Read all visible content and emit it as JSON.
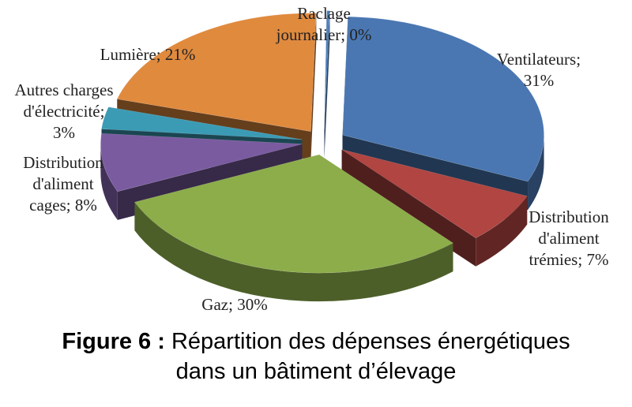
{
  "chart_data": {
    "type": "pie",
    "title": "",
    "slices": [
      {
        "label_lines": [
          "Raclage",
          "journalier; 0%"
        ],
        "category": "Raclage journalier",
        "value": 0,
        "color": "#4F81BD"
      },
      {
        "label_lines": [
          "Ventilateurs;",
          "31%"
        ],
        "category": "Ventilateurs",
        "value": 31,
        "color": "#4A77B2"
      },
      {
        "label_lines": [
          "Distribution",
          "d'aliment",
          "trémies; 7%"
        ],
        "category": "Distribution d'aliment trémies",
        "value": 7,
        "color": "#B04542"
      },
      {
        "label_lines": [
          "Gaz; 30%"
        ],
        "category": "Gaz",
        "value": 30,
        "color": "#8CAD4A"
      },
      {
        "label_lines": [
          "Distribution",
          "d'aliment",
          "cages; 8%"
        ],
        "category": "Distribution d'aliment cages",
        "value": 8,
        "color": "#7A5BA0"
      },
      {
        "label_lines": [
          "Autres charges",
          "d'électricité;",
          "3%"
        ],
        "category": "Autres charges d'électricité",
        "value": 3,
        "color": "#3C9BB4"
      },
      {
        "label_lines": [
          "Lumière; 21%"
        ],
        "category": "Lumière",
        "value": 21,
        "color": "#E08A3E"
      }
    ],
    "style": "3d-exploded-pie",
    "legend": "none"
  },
  "caption": {
    "prefix": "Figure 6 :",
    "line1": "Répartition des dépenses énergétiques",
    "line2": "dans un bâtiment d’élevage"
  }
}
